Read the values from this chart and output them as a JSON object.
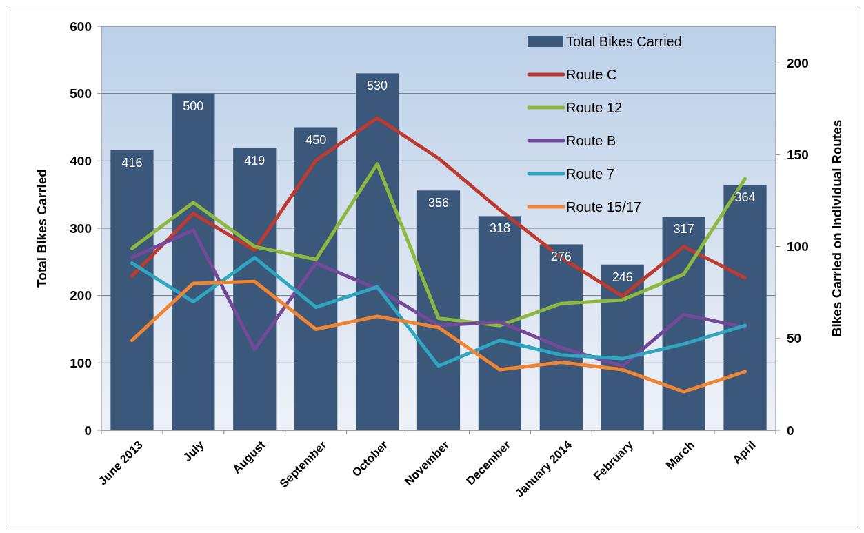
{
  "chart_data": {
    "type": "bar",
    "categories": [
      "June 2013",
      "July",
      "August",
      "September",
      "October",
      "November",
      "December",
      "January 2014",
      "February",
      "March",
      "April"
    ],
    "ylabel": "Total Bikes Carried",
    "y2label": "Bikes Carried on Individual Routes",
    "ylim": [
      0,
      600
    ],
    "yticks": [
      0,
      100,
      200,
      300,
      400,
      500,
      600
    ],
    "y2lim": [
      0,
      220
    ],
    "y2ticks": [
      0,
      50,
      100,
      150,
      200
    ],
    "grid": "y",
    "legend": "top right",
    "series": [
      {
        "name": "Total Bikes Carried",
        "color": "#3b5779",
        "values": [
          416,
          500,
          419,
          450,
          530,
          356,
          318,
          276,
          246,
          317,
          364
        ],
        "value_labels": [
          "416",
          "500",
          "419",
          "450",
          "530",
          "356",
          "318",
          "276",
          "246",
          "317",
          "364"
        ]
      },
      {
        "name": "Route C",
        "type": "line",
        "axis": "y2",
        "color": "#c0392f",
        "values": [
          84,
          118,
          98,
          147,
          170,
          148,
          120,
          94,
          73,
          100,
          83
        ]
      },
      {
        "name": "Route 12",
        "type": "line",
        "axis": "y2",
        "color": "#8db83f",
        "values": [
          99,
          124,
          100,
          93,
          145,
          61,
          57,
          69,
          71,
          85,
          137
        ]
      },
      {
        "name": "Route B",
        "type": "line",
        "axis": "y2",
        "color": "#74499a",
        "values": [
          94,
          109,
          44,
          91,
          77,
          57,
          59,
          45,
          35,
          63,
          56
        ]
      },
      {
        "name": "Route 7",
        "type": "line",
        "axis": "y2",
        "color": "#2fa6bf",
        "values": [
          91,
          70,
          94,
          67,
          78,
          35,
          49,
          41,
          39,
          47,
          57
        ]
      },
      {
        "name": "Route 15/17",
        "type": "line",
        "axis": "y2",
        "color": "#ef8533",
        "values": [
          49,
          80,
          81,
          55,
          62,
          56,
          33,
          37,
          33,
          21,
          32
        ]
      }
    ]
  }
}
